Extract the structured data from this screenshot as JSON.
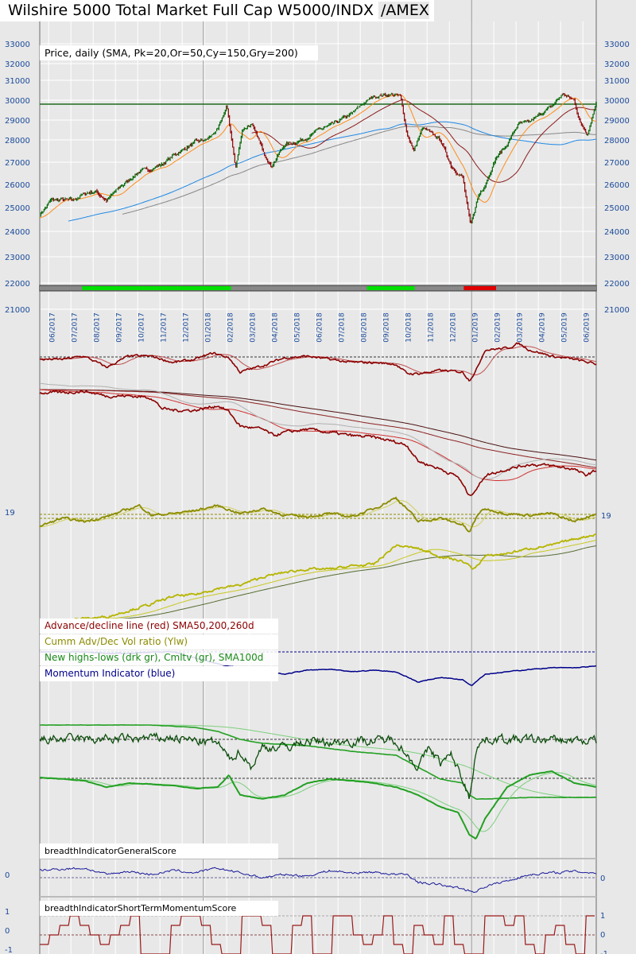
{
  "title": "Wilshire 5000 Total Market Full Cap W5000/INDX",
  "exchange": "/AMEX",
  "legend": {
    "price": "Price, daily (SMA, Pk=20,Or=50,Cy=150,Gry=200)",
    "ad": "Advance/decline line (red) SMA50,200,260d",
    "vol": "Cumm Adv/Dec Vol ratio (Ylw)",
    "nhl": "New highs-lows (drk gr), Cmltv (gr), SMA100d",
    "mom": "Momentum Indicator (blue)",
    "general": "breadthIndicatorGeneralScore",
    "short": "breadthIndicatorShortTermMomentumScore"
  },
  "colors": {
    "up": "#006400",
    "down": "#8b0000",
    "sma20": "#ff8c1a",
    "sma50": "#8b1a1a",
    "sma150": "#1e88e5",
    "sma200": "#888888",
    "ad": "#8b0000",
    "vol": "#b5b500",
    "volOsc": "#8b8b00",
    "mom": "#00008b",
    "nhl": "#0b4d0b",
    "nhlCum": "#22a022",
    "bull": "#00e000",
    "bear": "#e00000"
  },
  "chart_data": {
    "type": "line",
    "x_ticks": [
      "06/2017",
      "07/2017",
      "08/2017",
      "09/2017",
      "10/2017",
      "11/2017",
      "12/2017",
      "01/2018",
      "02/2018",
      "03/2018",
      "04/2018",
      "05/2018",
      "06/2018",
      "07/2018",
      "08/2018",
      "09/2018",
      "10/2018",
      "11/2018",
      "12/2018",
      "01/2019",
      "02/2019",
      "03/2019",
      "04/2019",
      "05/2019",
      "06/2019"
    ],
    "y_ticks": [
      "33000",
      "32000",
      "31000",
      "30000",
      "29000",
      "28000",
      "27000",
      "26000",
      "25000",
      "24000",
      "23000",
      "22000",
      "21000"
    ],
    "y_tick_values": [
      33000,
      32000,
      31000,
      30000,
      29000,
      28000,
      27000,
      26000,
      25000,
      24000,
      23000,
      22000,
      21000
    ],
    "side_label": "19",
    "reference_level": 29800,
    "price": {
      "t": [
        0,
        0.5,
        1,
        1.5,
        2,
        2.5,
        3,
        3.5,
        4,
        4.5,
        5,
        5.5,
        6,
        6.5,
        7,
        7.5,
        8,
        8.4,
        8.8,
        9.1,
        9.5,
        10,
        10.4,
        11,
        11.5,
        12,
        12.5,
        13,
        13.5,
        14,
        14.5,
        15,
        15.8,
        16.2,
        16.5,
        16.8,
        17.2,
        17.5,
        18,
        18.5,
        19,
        19.35,
        19.7,
        20,
        20.5,
        21,
        21.5,
        22,
        22.5,
        23,
        23.5,
        24,
        24.3,
        24.6,
        25
      ],
      "values": [
        24700,
        25300,
        25350,
        25300,
        25600,
        25700,
        25300,
        25800,
        26200,
        26600,
        26700,
        26900,
        27300,
        27600,
        27900,
        28000,
        28500,
        29700,
        26700,
        28500,
        28800,
        27600,
        26800,
        27800,
        27900,
        28100,
        28500,
        28700,
        29000,
        29300,
        29800,
        30200,
        30300,
        30200,
        28300,
        27500,
        28600,
        28400,
        28000,
        26800,
        26300,
        24200,
        25500,
        26000,
        27200,
        27800,
        28800,
        28900,
        29300,
        29700,
        30300,
        30000,
        28800,
        28300,
        29900
      ]
    },
    "regime_bar": [
      {
        "from": 0,
        "to": 1.9,
        "state": "neutral"
      },
      {
        "from": 1.9,
        "to": 8.6,
        "state": "bull"
      },
      {
        "from": 8.6,
        "to": 14.7,
        "state": "neutral"
      },
      {
        "from": 14.7,
        "to": 16.85,
        "state": "bull"
      },
      {
        "from": 16.85,
        "to": 19.05,
        "state": "neutral"
      },
      {
        "from": 19.05,
        "to": 20.5,
        "state": "bear"
      },
      {
        "from": 20.5,
        "to": 25,
        "state": "neutral"
      }
    ],
    "ad_osc": {
      "t": [
        0,
        1,
        2,
        3,
        4,
        5,
        6,
        7,
        7.8,
        8.5,
        9,
        10,
        11,
        12,
        13,
        14,
        15,
        16,
        16.5,
        17,
        18,
        19,
        19.3,
        19.6,
        20,
        21,
        21.5,
        22,
        23,
        24,
        25
      ],
      "values": [
        89,
        89,
        91,
        84,
        91,
        91,
        87,
        89,
        93,
        90,
        81,
        85,
        90,
        91,
        89,
        87,
        87,
        86,
        80,
        80,
        82,
        81,
        76,
        82,
        95,
        96,
        99,
        95,
        91,
        89,
        86
      ]
    },
    "ad_line": {
      "t": [
        0,
        1,
        2,
        3,
        4,
        5,
        5.5,
        6,
        7,
        8,
        8.5,
        9,
        10,
        10.5,
        11,
        12,
        13,
        14,
        15,
        16,
        16.5,
        17,
        18,
        18.8,
        19.3,
        19.7,
        20,
        21,
        22,
        23,
        24,
        24.5,
        25
      ],
      "values": [
        68,
        68,
        69,
        66,
        66,
        65,
        58,
        57,
        57,
        60,
        56,
        47,
        45,
        41,
        43,
        45,
        43,
        41,
        40,
        37,
        35,
        25,
        20,
        15,
        3,
        9,
        16,
        20,
        23,
        22,
        20,
        16,
        19
      ]
    },
    "vol_osc": {
      "t": [
        0,
        1,
        2,
        3,
        4,
        4.5,
        5,
        6,
        7,
        8,
        9,
        10,
        11,
        12,
        13,
        14,
        15,
        16,
        16.5,
        17,
        18,
        19,
        19.3,
        19.7,
        20,
        21,
        22,
        23,
        24,
        25
      ],
      "values": [
        64,
        69,
        67,
        70,
        75,
        77,
        71,
        72,
        74,
        77,
        72,
        75,
        71,
        70,
        72,
        70,
        75,
        82,
        75,
        67,
        69,
        65,
        60,
        72,
        75,
        72,
        71,
        72,
        67,
        72
      ]
    },
    "cum_vol": {
      "t": [
        0,
        1,
        2,
        3,
        4,
        5,
        6,
        7,
        8,
        9,
        10,
        11,
        12,
        13,
        14,
        15,
        16,
        17,
        18,
        19,
        19.5,
        20,
        21,
        22,
        23,
        24,
        25
      ],
      "values": [
        5,
        5,
        6,
        7,
        11,
        15,
        20,
        21,
        25,
        27,
        32,
        35,
        37,
        37,
        39,
        40,
        52,
        50,
        45,
        42,
        37,
        45,
        47,
        50,
        52,
        56,
        59
      ]
    },
    "momentum": {
      "t": [
        0,
        1,
        2,
        3,
        4,
        5,
        6,
        7,
        8,
        9,
        10,
        11,
        12,
        13,
        14,
        15,
        16,
        17,
        18,
        19,
        19.4,
        20,
        21,
        22,
        23,
        24,
        25
      ],
      "values": [
        50,
        50,
        50,
        48,
        48,
        50,
        50,
        42,
        35,
        30,
        25,
        22,
        27,
        28,
        25,
        27,
        25,
        12,
        18,
        15,
        8,
        22,
        25,
        28,
        30,
        30,
        32
      ]
    },
    "new_highs_lows": {
      "t": [
        0,
        3,
        6,
        7,
        8,
        8.5,
        9,
        9.5,
        10,
        11,
        12,
        13,
        14,
        15,
        16,
        16.5,
        17,
        17.5,
        18,
        18.5,
        19,
        19.3,
        19.6,
        20,
        21,
        25
      ],
      "values": [
        130,
        130,
        132,
        128,
        125,
        105,
        115,
        95,
        120,
        120,
        128,
        126,
        128,
        128,
        130,
        110,
        95,
        120,
        100,
        110,
        80,
        55,
        120,
        130,
        130,
        128
      ]
    },
    "nhl_cumulative": {
      "t": [
        0,
        5,
        7,
        8,
        9,
        10,
        12,
        14,
        16,
        17,
        18,
        19,
        19.3,
        19.6,
        20,
        22,
        25
      ],
      "values": [
        148,
        148,
        145,
        140,
        130,
        125,
        122,
        115,
        110,
        95,
        80,
        75,
        60,
        55,
        55,
        57,
        57
      ]
    },
    "nhl_osc": {
      "t": [
        0,
        2,
        3,
        4,
        6,
        7,
        8,
        8.5,
        9,
        10,
        11,
        12,
        13,
        14,
        15,
        16,
        17,
        18,
        18.8,
        19.3,
        19.6,
        20,
        21,
        22,
        23,
        24,
        25
      ],
      "values": [
        82,
        78,
        70,
        75,
        72,
        68,
        70,
        85,
        60,
        55,
        60,
        75,
        80,
        78,
        75,
        70,
        60,
        45,
        38,
        10,
        5,
        30,
        70,
        85,
        90,
        75,
        70
      ]
    },
    "general_score": {
      "t": [
        0,
        1,
        2,
        3,
        4,
        5,
        6,
        7,
        8,
        9,
        10,
        11,
        12,
        13,
        14,
        15,
        16,
        16.5,
        17,
        18,
        19,
        19.5,
        20,
        21,
        22,
        23,
        24,
        25
      ],
      "values": [
        0.45,
        0.55,
        0.6,
        0.2,
        0.4,
        0.2,
        0.45,
        0.3,
        0.6,
        0.3,
        0,
        0.2,
        0.1,
        0.45,
        0.3,
        0.35,
        0.2,
        0.2,
        -0.3,
        -0.45,
        -0.7,
        -0.9,
        -0.55,
        -0.2,
        0.2,
        0.3,
        0.4,
        0.3
      ]
    },
    "short_term_score": [
      -0.5,
      0,
      0.5,
      1,
      0.5,
      0,
      -0.5,
      0,
      0.5,
      1,
      -1,
      -1,
      -1,
      0.5,
      1,
      1,
      0.5,
      -0.5,
      -1,
      -1,
      1,
      1,
      0.5,
      -1,
      -1,
      0.5,
      1,
      -1,
      -1,
      1,
      1,
      0,
      -0.5,
      0,
      1,
      -0.5,
      -1,
      0.5,
      0,
      -0.5,
      1,
      -0.5,
      -1,
      -1,
      1,
      1,
      0.5,
      1,
      -0.5,
      -1,
      0,
      0.5,
      -0.5,
      -1,
      1
    ],
    "score_ticks": [
      "1",
      "0",
      "-1"
    ],
    "general_zero": "0"
  }
}
